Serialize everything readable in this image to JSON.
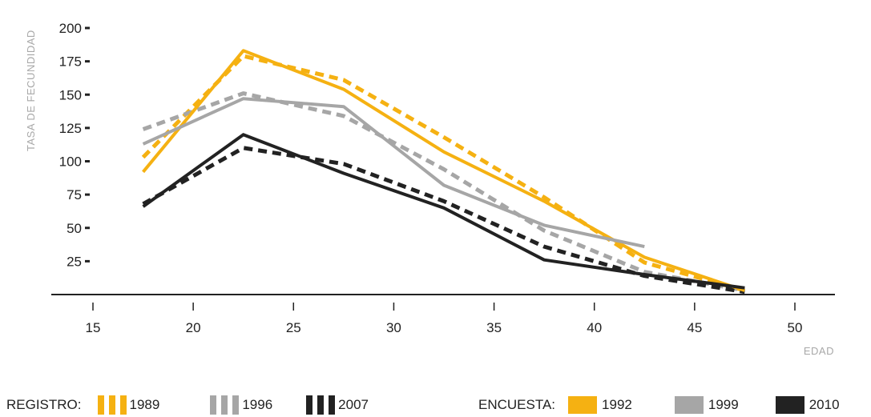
{
  "chart_data": {
    "type": "line",
    "ylabel": "TASA DE FECUNDIDAD",
    "xlabel": "EDAD",
    "xlim": [
      15,
      50
    ],
    "ylim": [
      0,
      200
    ],
    "x_ticks": [
      15,
      20,
      25,
      30,
      35,
      40,
      45,
      50
    ],
    "y_ticks": [
      25,
      50,
      75,
      100,
      125,
      150,
      175,
      200
    ],
    "series": [
      {
        "name": "1989",
        "group": "REGISTRO",
        "style": "dashed",
        "color": "#f5b112",
        "x": [
          17.5,
          22.5,
          27.5,
          32.5,
          37.5,
          42.5,
          47.5
        ],
        "y": [
          103,
          179,
          161,
          118,
          73,
          24,
          3
        ]
      },
      {
        "name": "1996",
        "group": "REGISTRO",
        "style": "dashed",
        "color": "#a6a6a6",
        "x": [
          17.5,
          22.5,
          27.5,
          32.5,
          37.5,
          42.5,
          47.5
        ],
        "y": [
          124,
          151,
          134,
          94,
          48,
          17,
          3
        ]
      },
      {
        "name": "2007",
        "group": "REGISTRO",
        "style": "dashed",
        "color": "#222222",
        "x": [
          17.5,
          22.5,
          27.5,
          32.5,
          37.5,
          42.5,
          47.5
        ],
        "y": [
          68,
          110,
          98,
          70,
          36,
          14,
          2
        ]
      },
      {
        "name": "1992",
        "group": "ENCUESTA",
        "style": "solid",
        "color": "#f5b112",
        "x": [
          17.5,
          22.5,
          27.5,
          32.5,
          37.5,
          42.5,
          47.5
        ],
        "y": [
          92,
          183,
          154,
          107,
          70,
          28,
          3
        ]
      },
      {
        "name": "1999",
        "group": "ENCUESTA",
        "style": "solid",
        "color": "#a6a6a6",
        "x": [
          17.5,
          22.5,
          27.5,
          32.5,
          37.5,
          42.5
        ],
        "y": [
          113,
          147,
          141,
          82,
          52,
          36
        ]
      },
      {
        "name": "2010",
        "group": "ENCUESTA",
        "style": "solid",
        "color": "#222222",
        "x": [
          17.5,
          22.5,
          27.5,
          32.5,
          37.5,
          42.5,
          47.5
        ],
        "y": [
          66,
          120,
          91,
          65,
          26,
          15,
          5
        ]
      }
    ],
    "legend_groups": [
      {
        "label": "REGISTRO:",
        "entries": [
          "1989",
          "1996",
          "2007"
        ]
      },
      {
        "label": "ENCUESTA:",
        "entries": [
          "1992",
          "1999",
          "2010"
        ]
      }
    ],
    "grid": false,
    "legend_position": "bottom"
  }
}
